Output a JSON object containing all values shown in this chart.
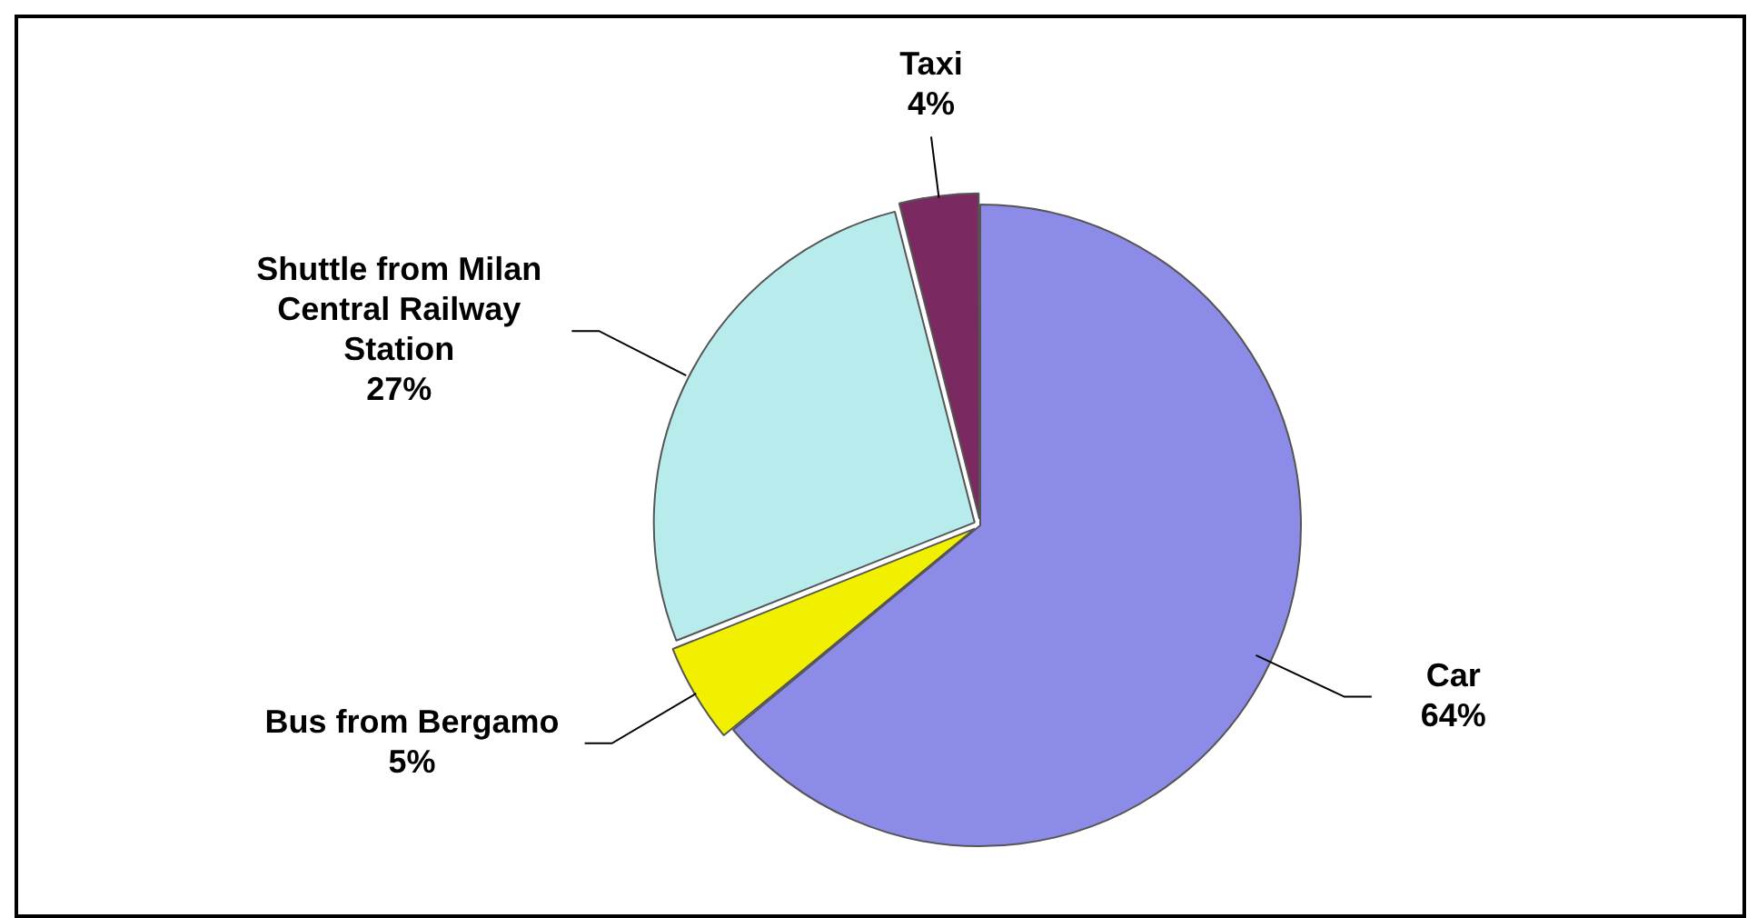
{
  "chart_data": {
    "type": "pie",
    "categories": [
      "Car",
      "Bus from Bergamo",
      "Shuttle from Milan Central Railway Station",
      "Taxi"
    ],
    "values": [
      64,
      5,
      27,
      4
    ],
    "colors": [
      "#8c8ce8",
      "#f0f000",
      "#b8ecec",
      "#7a2a60"
    ],
    "value_labels": [
      "64%",
      "5%",
      "27%",
      "4%"
    ],
    "legend": false
  }
}
